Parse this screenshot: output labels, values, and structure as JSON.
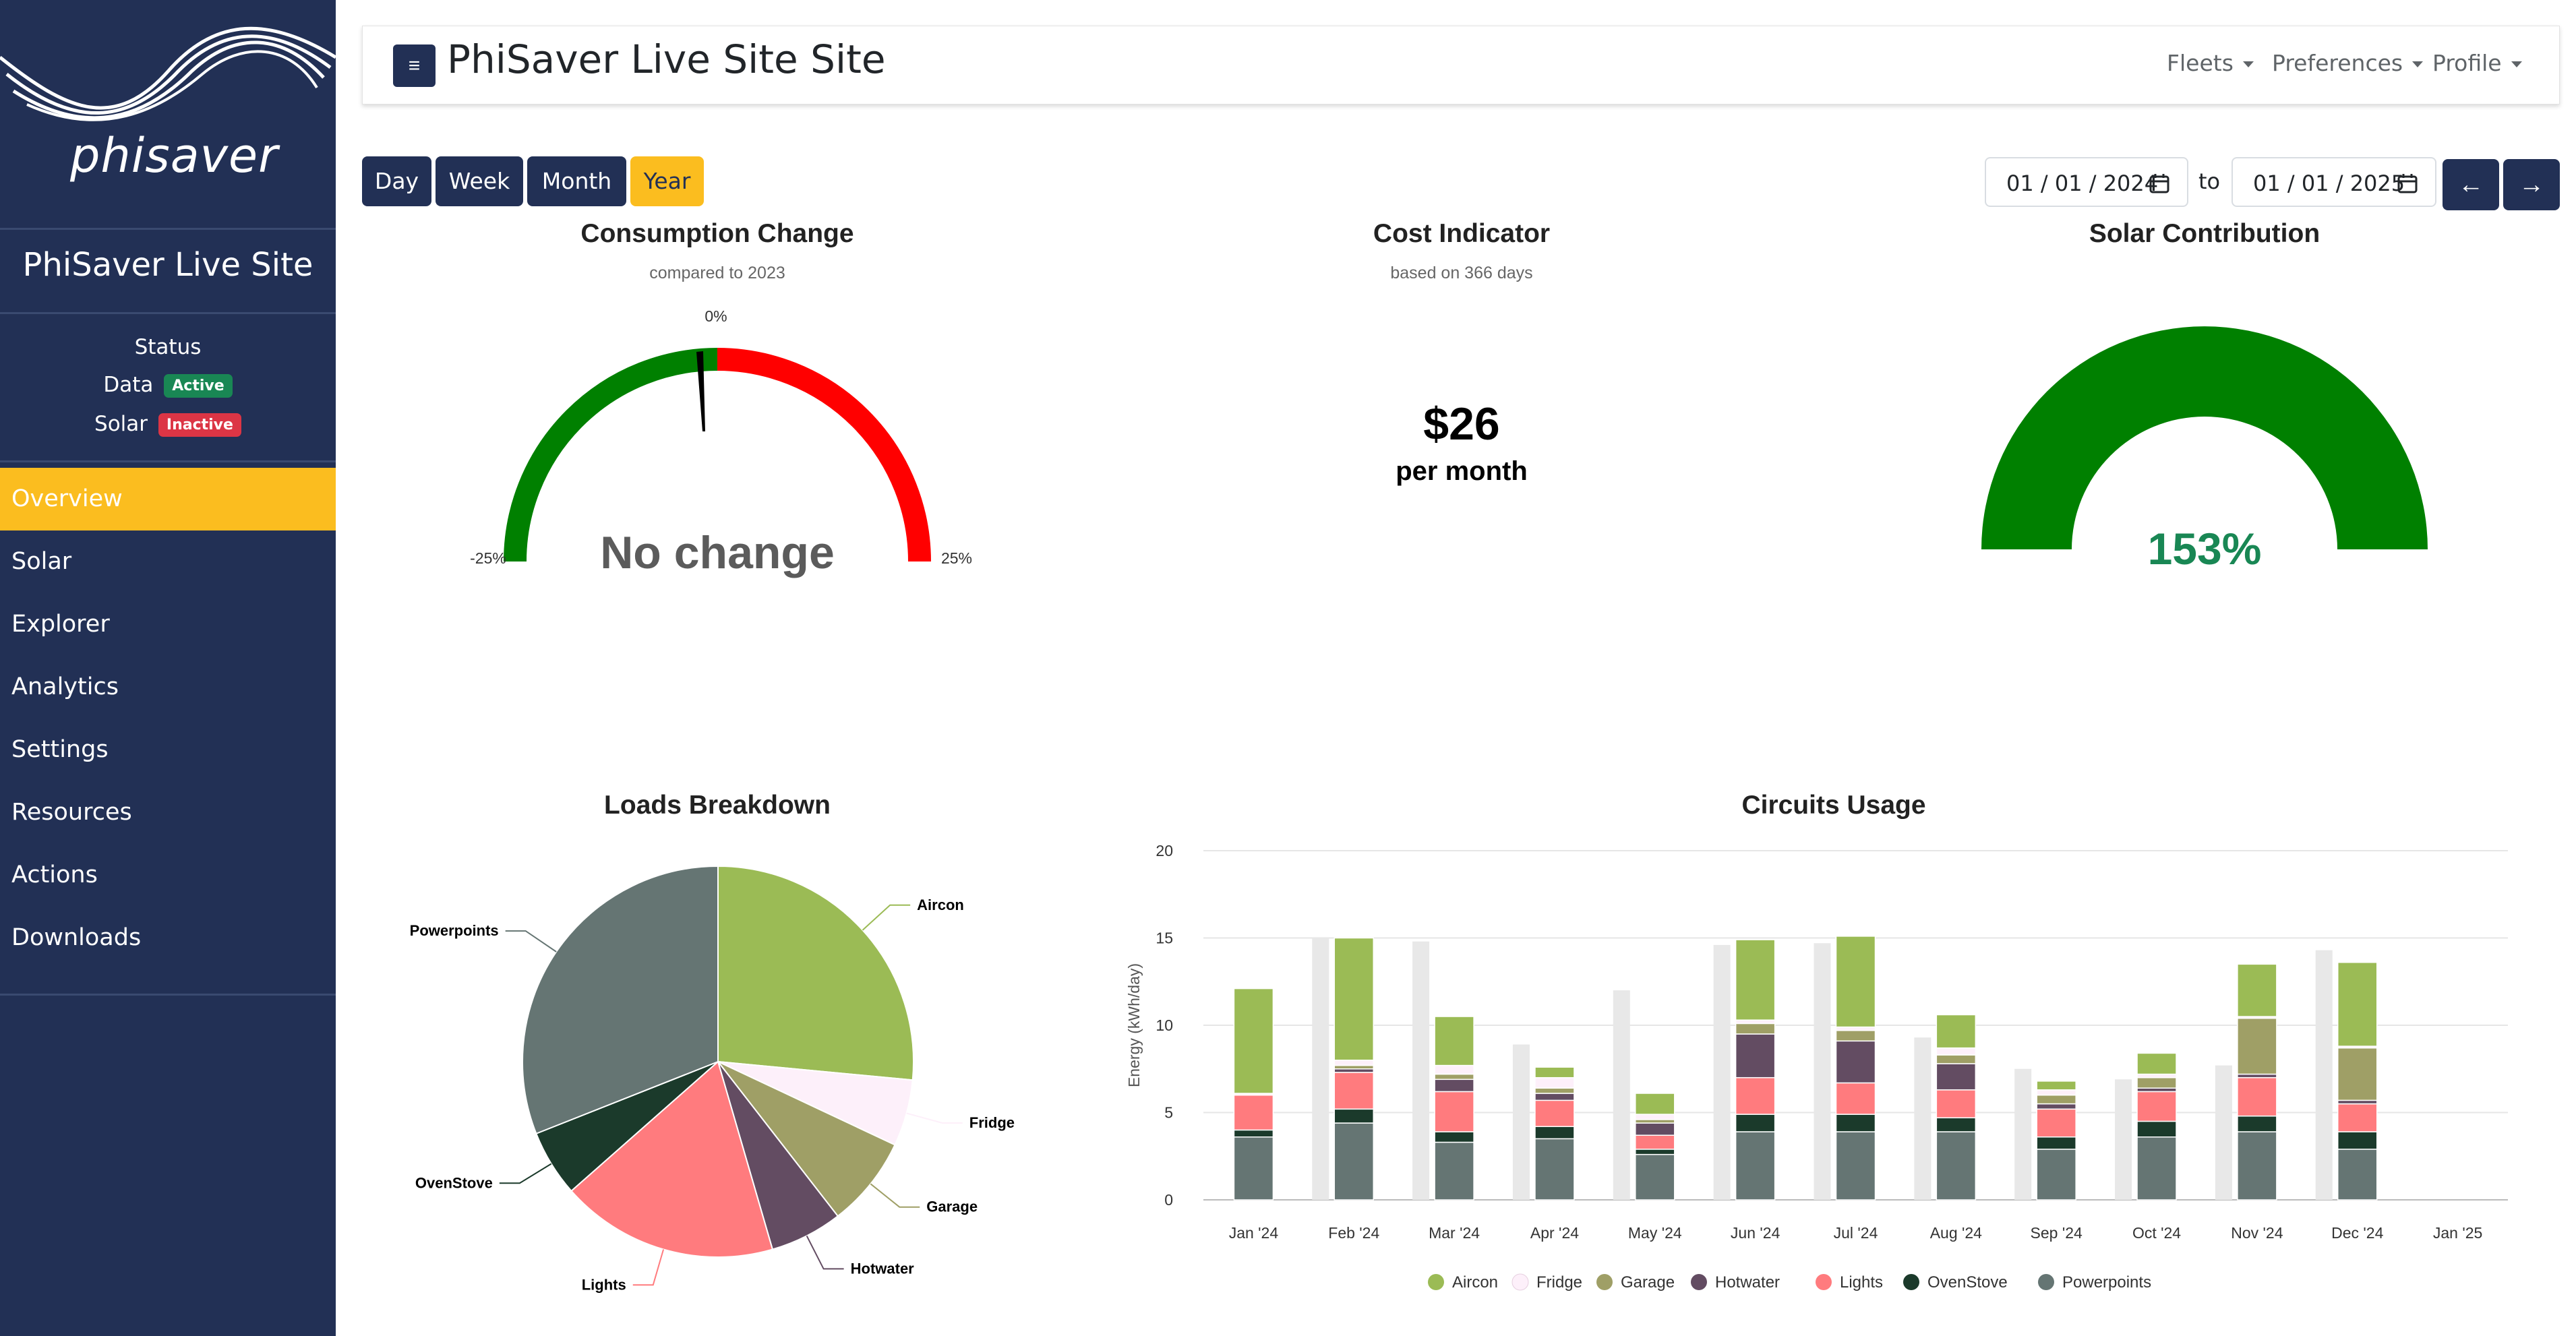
{
  "app": {
    "logo_text": "phisaver",
    "site_name": "PhiSaver Live Site",
    "page_title": "PhiSaver Live Site Site"
  },
  "sidebar": {
    "status_title": "Status",
    "status_rows": [
      {
        "label": "Data",
        "badge": "Active",
        "color": "#198754"
      },
      {
        "label": "Solar",
        "badge": "Inactive",
        "color": "#dc3545"
      }
    ],
    "nav": [
      {
        "label": "Overview",
        "active": true
      },
      {
        "label": "Solar"
      },
      {
        "label": "Explorer"
      },
      {
        "label": "Analytics"
      },
      {
        "label": "Settings"
      },
      {
        "label": "Resources"
      },
      {
        "label": "Actions"
      },
      {
        "label": "Downloads"
      }
    ]
  },
  "topbar": {
    "menu_icon": "≡",
    "menus": [
      "Fleets",
      "Preferences",
      "Profile"
    ]
  },
  "range_buttons": [
    {
      "label": "Day"
    },
    {
      "label": "Week"
    },
    {
      "label": "Month"
    },
    {
      "label": "Year",
      "active": true
    }
  ],
  "date_range": {
    "from": "01 / 01 / 2024",
    "to_label": "to",
    "to": "01 / 01 / 2025",
    "prev": "←",
    "next": "→"
  },
  "consumption": {
    "title": "Consumption Change",
    "subtitle": "compared to 2023",
    "label_min": "-25%",
    "label_zero": "0%",
    "label_max": "25%",
    "value_text": "No change"
  },
  "cost": {
    "title": "Cost Indicator",
    "subtitle": "based on 366 days",
    "value": "$26",
    "unit": "per month"
  },
  "solar": {
    "title": "Solar Contribution",
    "value": "153%"
  },
  "colors": {
    "sidebar_bg": "#223055",
    "accent": "#fbbd1f",
    "Aircon": "#9bbb55",
    "Fridge": "#fdf0fa",
    "Garage": "#9f9f66",
    "Hotwater": "#634c62",
    "Lights": "#ff7b7e",
    "OvenStove": "#1b3a2b",
    "Powerpoints": "#657573"
  },
  "chart_data": [
    {
      "type": "pie",
      "title": "Loads Breakdown",
      "labels": [
        "Aircon",
        "Fridge",
        "Garage",
        "Hotwater",
        "Lights",
        "OvenStove",
        "Powerpoints"
      ],
      "values": [
        26.5,
        5.5,
        7.5,
        6.0,
        18.0,
        5.5,
        31.0
      ]
    },
    {
      "type": "bar",
      "title": "Circuits Usage",
      "ylabel": "Energy (kWh/day)",
      "ylim": [
        0,
        20
      ],
      "yticks": [
        0,
        5,
        10,
        15,
        20
      ],
      "categories": [
        "Jan '24",
        "Feb '24",
        "Mar '24",
        "Apr '24",
        "May '24",
        "Jun '24",
        "Jul '24",
        "Aug '24",
        "Sep '24",
        "Oct '24",
        "Nov '24",
        "Dec '24",
        "Jan '25"
      ],
      "previous_year_totals": [
        0,
        15.0,
        14.8,
        8.9,
        12.0,
        14.6,
        14.7,
        9.3,
        7.5,
        6.9,
        7.7,
        14.3,
        0
      ],
      "series": [
        {
          "name": "Powerpoints",
          "values": [
            3.6,
            4.4,
            3.3,
            3.5,
            2.6,
            3.9,
            3.9,
            3.9,
            2.9,
            3.6,
            3.9,
            2.9,
            0
          ]
        },
        {
          "name": "OvenStove",
          "values": [
            0.4,
            0.8,
            0.6,
            0.7,
            0.3,
            1.0,
            1.0,
            0.8,
            0.7,
            0.9,
            0.9,
            1.0,
            0
          ]
        },
        {
          "name": "Lights",
          "values": [
            2.0,
            2.1,
            2.3,
            1.5,
            0.8,
            2.1,
            1.8,
            1.6,
            1.6,
            1.7,
            2.2,
            1.6,
            0
          ]
        },
        {
          "name": "Hotwater",
          "values": [
            0,
            0.2,
            0.7,
            0.4,
            0.7,
            2.5,
            2.4,
            1.5,
            0.3,
            0.2,
            0.2,
            0.2,
            0
          ]
        },
        {
          "name": "Garage",
          "values": [
            0,
            0.2,
            0.3,
            0.3,
            0.2,
            0.6,
            0.6,
            0.5,
            0.5,
            0.6,
            3.2,
            3.0,
            0
          ]
        },
        {
          "name": "Fridge",
          "values": [
            0.1,
            0.3,
            0.5,
            0.6,
            0.3,
            0.2,
            0.2,
            0.4,
            0.3,
            0.2,
            0.1,
            0.1,
            0
          ]
        },
        {
          "name": "Aircon",
          "values": [
            6.0,
            7.0,
            2.8,
            0.6,
            1.2,
            4.6,
            5.2,
            1.9,
            0.5,
            1.2,
            3.0,
            4.8,
            0
          ]
        }
      ],
      "legend": [
        "Aircon",
        "Fridge",
        "Garage",
        "Hotwater",
        "Lights",
        "OvenStove",
        "Powerpoints"
      ],
      "legend_position": "bottom"
    }
  ]
}
